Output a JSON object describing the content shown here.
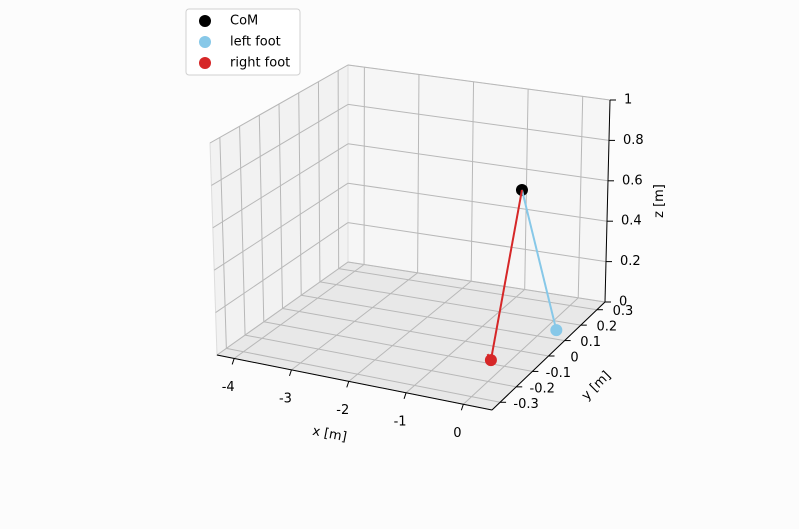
{
  "chart_data": {
    "type": "scatter3d",
    "xlabel": "x [m]",
    "ylabel": "y [m]",
    "zlabel": "z [m]",
    "xlim": [
      -4.3,
      0.5
    ],
    "ylim": [
      -0.35,
      0.35
    ],
    "zlim": [
      0,
      1.0
    ],
    "xticks": [
      -4,
      -3,
      -2,
      -1,
      0
    ],
    "yticks": [
      -0.3,
      -0.2,
      -0.1,
      0.0,
      0.1,
      0.2,
      0.3
    ],
    "zticks": [
      0.0,
      0.2,
      0.4,
      0.6,
      0.8,
      1.0
    ],
    "grid": true,
    "legend": "upper left",
    "series": [
      {
        "name": "CoM",
        "color": "#000000",
        "x": [
          -0.1
        ],
        "y": [
          0.03
        ],
        "z": [
          0.75
        ]
      },
      {
        "name": "left foot",
        "color": "#87c8e8",
        "x": [
          0.2
        ],
        "y": [
          0.15
        ],
        "z": [
          0
        ]
      },
      {
        "name": "right foot",
        "color": "#d62728",
        "x": [
          -0.45,
          -0.3
        ],
        "y": [
          -0.05,
          -0.08
        ],
        "z": [
          0,
          0
        ]
      }
    ]
  }
}
